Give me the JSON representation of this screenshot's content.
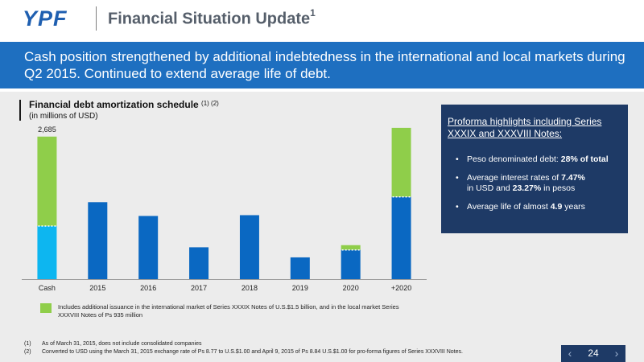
{
  "header": {
    "logo": "YPF",
    "title": "Financial Situation Update",
    "title_sup": "1"
  },
  "banner": {
    "text": "Cash position strengthened by additional indebtedness in the international and local markets during Q2 2015. Continued to extend average life of debt."
  },
  "chart": {
    "title": "Financial debt amortization schedule",
    "title_notes": "(1) (2)",
    "subtitle": "(in millions of USD)"
  },
  "chart_data": {
    "type": "bar",
    "stacked": true,
    "categories": [
      "Cash",
      "2015",
      "2016",
      "2017",
      "2018",
      "2019",
      "2020",
      "+2020"
    ],
    "series": [
      {
        "values": [
          1000,
          1450,
          1190,
          600,
          1205,
          410,
          550,
          1550
        ]
      },
      {
        "values": [
          1685,
          0,
          0,
          0,
          0,
          0,
          90,
          1300
        ]
      }
    ],
    "data_labels": [
      {
        "category": "Cash",
        "text": "2,685"
      }
    ],
    "ylim": [
      0,
      3000
    ],
    "grid": false,
    "colors": {
      "base": "#0a68c2",
      "cash_base": "#0db6f0",
      "additional": "#8fce4a",
      "separator": "#ffffff"
    }
  },
  "legend": {
    "text": "Includes additional issuance in the international market of Series XXXIX Notes of U.S.$1.5 billion, and in the local market Series XXXVIII Notes of Ps 935 million",
    "color": "#8fce4a"
  },
  "highlights": {
    "title": "Proforma highlights including Series XXXIX and XXXVIII Notes:",
    "items": [
      {
        "pre": "Peso denominated debt: ",
        "bold": "28% of total",
        "mid": "",
        "bold2": "",
        "post": ""
      },
      {
        "pre": "Average interest rates of ",
        "bold": "7.47%",
        "mid": " in USD and ",
        "bold2": "23.27%",
        "post": " in pesos"
      },
      {
        "pre": "Average life of almost ",
        "bold": "4.9",
        "mid": " years",
        "bold2": "",
        "post": ""
      }
    ]
  },
  "footnotes": [
    {
      "num": "(1)",
      "text": "As of March 31, 2015, does not include consolidated companies"
    },
    {
      "num": "(2)",
      "text": "Converted to USD using the March 31, 2015 exchange rate of Ps 8.77 to U.S.$1.00 and April 9, 2015 of Ps 8.84 U.S.$1.00 for pro-forma figures of Series XXXVIII Notes."
    }
  ],
  "pager": {
    "prev": "‹",
    "page": "24",
    "next": "›"
  }
}
